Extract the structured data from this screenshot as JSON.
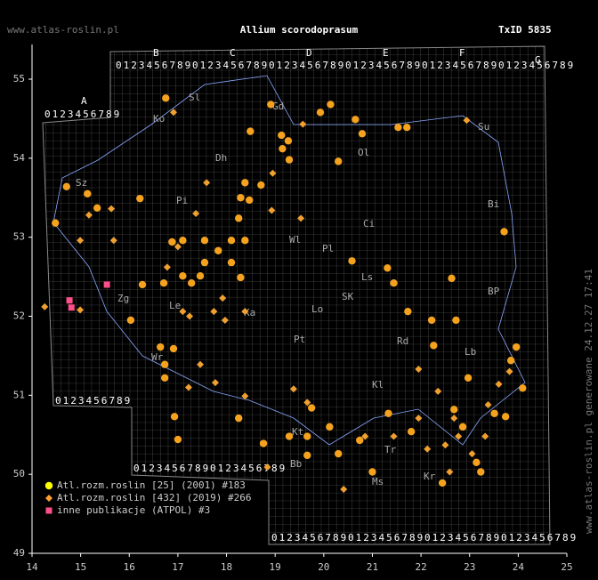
{
  "chart_data": {
    "type": "scatter",
    "title": "Allium scorodoprasum",
    "taxon_id": "TxID 5835",
    "site": "www.atlas-roslin.pl",
    "side_note": "www.atlas-roslin.pl generowane 24.12.27 17:41",
    "xlim": [
      14,
      25
    ],
    "xticks": [
      14,
      15,
      16,
      17,
      18,
      19,
      20,
      21,
      22,
      23,
      24,
      25
    ],
    "ylim": [
      49,
      55
    ],
    "yticks": [
      49,
      50,
      51,
      52,
      53,
      54,
      55
    ],
    "grid_letters": [
      "A",
      "B",
      "C",
      "D",
      "E",
      "F",
      "G"
    ],
    "grid_digits": "0123456789",
    "region_labels": [
      "Sl",
      "Ko",
      "Gd",
      "Ol",
      "Su",
      "Dh",
      "Pi",
      "Bi",
      "Ci",
      "Wl",
      "Pl",
      "Ls",
      "Ka",
      "Lo",
      "SK",
      "Pt",
      "Rd",
      "BP",
      "Lb",
      "Kl",
      "Kt",
      "Tr",
      "Bb",
      "Ms",
      "Kr",
      "Zg",
      "Le",
      "Wr",
      "Sz"
    ],
    "series": [
      {
        "name": "Atl.rozm.roslin [25] (2001) #183",
        "color": "#ffff00",
        "point_color": "#f5a21e",
        "marker": "circle",
        "x": [
          16.75,
          18.91,
          19.93,
          20.14,
          20.65,
          20.79,
          21.53,
          21.71,
          18.49,
          19.13,
          19.27,
          19.15,
          19.29,
          20.3,
          18.38,
          18.71,
          18.29,
          18.47,
          18.25,
          15.14,
          14.71,
          16.22,
          15.34,
          14.48,
          16.88,
          17.55,
          18.1,
          18.38,
          17.83,
          17.55,
          18.1,
          17.1,
          17.46,
          18.29,
          16.27,
          16.71,
          20.58,
          21.31,
          21.44,
          22.63,
          22.72,
          21.73,
          22.26,
          23.71,
          16.03,
          16.64,
          16.91,
          16.73,
          16.73,
          16.93,
          17.0,
          18.25,
          18.76,
          19.29,
          20.12,
          19.66,
          19.66,
          19.75,
          20.74,
          20.3,
          21.33,
          21.8,
          22.68,
          22.86,
          23.14,
          23.23,
          23.51,
          23.74,
          23.96,
          24.09,
          22.97,
          23.85,
          22.44,
          21.0,
          17.1,
          17.28,
          22.22
        ],
        "y": [
          54.76,
          54.68,
          54.58,
          54.68,
          54.49,
          54.31,
          54.39,
          54.39,
          54.34,
          54.29,
          54.22,
          54.12,
          53.98,
          53.96,
          53.69,
          53.66,
          53.5,
          53.47,
          53.24,
          53.55,
          53.64,
          53.49,
          53.37,
          53.18,
          52.94,
          52.96,
          52.96,
          52.96,
          52.83,
          52.68,
          52.68,
          52.51,
          52.51,
          52.49,
          52.4,
          52.42,
          52.7,
          52.61,
          52.42,
          52.48,
          51.95,
          52.06,
          51.63,
          53.07,
          51.95,
          51.61,
          51.59,
          51.39,
          51.22,
          50.73,
          50.44,
          50.71,
          50.39,
          50.48,
          50.6,
          50.48,
          50.24,
          50.84,
          50.43,
          50.26,
          50.77,
          50.54,
          50.82,
          50.6,
          50.15,
          50.03,
          50.77,
          50.73,
          51.61,
          51.09,
          51.22,
          51.44,
          49.89,
          50.03,
          52.96,
          52.42,
          51.95
        ]
      },
      {
        "name": "Atl.rozm.roslin [432] (2019) #266",
        "color": "#ffa030",
        "point_color": "#f0a030",
        "marker": "diamond",
        "x": [
          16.91,
          17.59,
          15.63,
          15.17,
          18.93,
          19.53,
          17.37,
          17.0,
          16.78,
          17.92,
          17.1,
          17.74,
          18.38,
          14.99,
          15.68,
          17.46,
          17.77,
          18.38,
          17.22,
          19.38,
          19.66,
          19.57,
          21.95,
          22.35,
          22.68,
          22.77,
          23.05,
          22.5,
          21.95,
          21.44,
          20.85,
          22.13,
          23.32,
          23.6,
          23.82,
          22.94,
          18.95,
          18.84,
          20.41,
          22.59,
          14.26,
          17.97,
          17.24,
          14.99,
          23.38
        ],
        "y": [
          54.58,
          53.69,
          53.36,
          53.28,
          53.34,
          53.24,
          53.3,
          52.88,
          52.62,
          52.23,
          52.06,
          52.06,
          52.06,
          52.08,
          52.96,
          51.39,
          51.16,
          50.99,
          51.1,
          51.08,
          50.91,
          54.43,
          51.33,
          51.05,
          50.71,
          50.48,
          50.26,
          50.37,
          50.71,
          50.48,
          50.48,
          50.32,
          50.48,
          51.14,
          51.3,
          54.48,
          53.81,
          50.09,
          49.81,
          50.03,
          52.12,
          51.95,
          52.0,
          52.96,
          50.88
        ]
      },
      {
        "name": "inne publikacje (ATPOL) #3",
        "color": "#ff4f8b",
        "point_color": "#ff4f8b",
        "marker": "square",
        "x": [
          15.54,
          14.77,
          14.81
        ],
        "y": [
          52.4,
          52.2,
          52.11
        ]
      }
    ]
  }
}
